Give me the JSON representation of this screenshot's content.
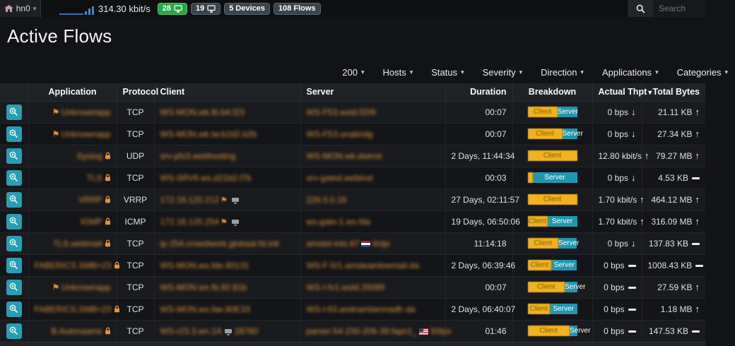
{
  "navbar": {
    "interface_label": "hn0",
    "throughput": "314.30 kbit/s",
    "badges": [
      {
        "label": "28",
        "style": "green",
        "icon": "monitor-icon"
      },
      {
        "label": "19",
        "style": "dark",
        "icon": "monitor-icon"
      },
      {
        "label": "5 Devices",
        "style": "dark",
        "icon": null
      },
      {
        "label": "108 Flows",
        "style": "dark",
        "icon": null
      }
    ],
    "search_placeholder": "Search"
  },
  "page": {
    "title": "Active Flows"
  },
  "filters": {
    "page_size": "200",
    "items": [
      "Hosts",
      "Status",
      "Severity",
      "Direction",
      "Applications",
      "Categories"
    ]
  },
  "table": {
    "headers": {
      "application": "Application",
      "protocol": "Protocol",
      "client": "Client",
      "server": "Server",
      "duration": "Duration",
      "breakdown": "Breakdown",
      "actual_thpt": "Actual Thpt",
      "total_bytes": "Total Bytes"
    },
    "breakdown_labels": {
      "client": "Client",
      "server": "Server"
    },
    "rows": [
      {
        "app": {
          "pre": [
            "thumbtack"
          ],
          "text": "Unknownapp",
          "post": []
        },
        "proto": "TCP",
        "client": [
          {
            "t": "WS-MON.wk.fb.b4.f23"
          }
        ],
        "server": [
          {
            "t": "WS-F53.wsld.f209"
          }
        ],
        "duration": "00:07",
        "client_pct": 60,
        "thpt": "0 bps",
        "thpt_trend": "down",
        "bytes": "21.11 KB",
        "bytes_trend": "up"
      },
      {
        "app": {
          "pre": [
            "thumbtack"
          ],
          "text": "Unknownapp",
          "post": []
        },
        "proto": "TCP",
        "client": [
          {
            "t": "WS-MON.wk.lw.b2d2.b2b"
          }
        ],
        "server": [
          {
            "t": "WS-F53.unabridg"
          }
        ],
        "duration": "00:07",
        "client_pct": 70,
        "thpt": "0 bps",
        "thpt_trend": "down",
        "bytes": "27.34 KB",
        "bytes_trend": "up"
      },
      {
        "app": {
          "pre": [],
          "text": "Syslog",
          "post": [
            "lock"
          ]
        },
        "proto": "UDP",
        "client": [
          {
            "t": "srv-pfx3.webhosting"
          }
        ],
        "server": [
          {
            "t": "WS-MON.wk.dwinst"
          }
        ],
        "duration": "2 Days, 11:44:34",
        "client_pct": 100,
        "thpt": "12.80 kbit/s",
        "thpt_trend": "up",
        "bytes": "79.27 MB",
        "bytes_trend": "up"
      },
      {
        "app": {
          "pre": [],
          "text": "TLS",
          "post": [
            "lock"
          ]
        },
        "proto": "TCP",
        "client": [
          {
            "t": "WS-SRV6.ws.d21b2.f7b"
          }
        ],
        "server": [
          {
            "t": "srv-gated.webinst"
          }
        ],
        "duration": "00:03",
        "client_pct": 10,
        "thpt": "0 bps",
        "thpt_trend": "down",
        "bytes": "4.53 KB",
        "bytes_trend": "flat"
      },
      {
        "app": {
          "pre": [],
          "text": "VRRP",
          "post": [
            "lock"
          ]
        },
        "proto": "VRRP",
        "client": [
          {
            "t": "172.18.120.212"
          },
          {
            "i": "flag-orange"
          },
          {
            "i": "device"
          }
        ],
        "server": [
          {
            "t": "226.0.0.18"
          }
        ],
        "duration": "27 Days, 02:11:57",
        "client_pct": 100,
        "thpt": "1.70 kbit/s",
        "thpt_trend": "up",
        "bytes": "464.12 MB",
        "bytes_trend": "up"
      },
      {
        "app": {
          "pre": [],
          "text": "IGMP",
          "post": [
            "lock"
          ]
        },
        "proto": "ICMP",
        "client": [
          {
            "t": "172.18.120.254"
          },
          {
            "i": "flag-orange"
          },
          {
            "i": "device"
          }
        ],
        "server": [
          {
            "t": "ws-gate-1.ws.fda"
          }
        ],
        "duration": "19 Days, 06:50:06",
        "client_pct": 40,
        "thpt": "1.70 kbit/s",
        "thpt_trend": "up",
        "bytes": "316.09 MB",
        "bytes_trend": "up"
      },
      {
        "app": {
          "pre": [],
          "text": "TLS.webmail",
          "post": [
            "lock"
          ]
        },
        "proto": "TCP",
        "client": [
          {
            "t": "ip-254.crowdwork.globaal.fd.intl"
          }
        ],
        "server": [
          {
            "t": "amstel-ints.67"
          },
          {
            "i": "flag-nl"
          },
          {
            "t": "lintje"
          }
        ],
        "duration": "11:14:18",
        "client_pct": 62,
        "thpt": "0 bps",
        "thpt_trend": "down",
        "bytes": "137.83 KB",
        "bytes_trend": "flat"
      },
      {
        "app": {
          "pre": [],
          "text": "FABERICS.SMB=23",
          "post": [
            "lock"
          ]
        },
        "proto": "TCP",
        "client": [
          {
            "t": "WS-MON.ws.fde.80131"
          }
        ],
        "server": [
          {
            "t": "WS-F-5/1.amsteamloemail-da"
          }
        ],
        "duration": "2 Days, 06:39:46",
        "client_pct": 48,
        "thpt": "0 bps",
        "thpt_trend": "flat",
        "bytes": "1008.43 KB",
        "bytes_trend": "flat"
      },
      {
        "app": {
          "pre": [
            "thumbtack"
          ],
          "text": "Unknownapp",
          "post": []
        },
        "proto": "TCP",
        "client": [
          {
            "t": "WS-MON.ws.fb.92.81b"
          }
        ],
        "server": [
          {
            "t": "WS-I-fv1.wsld.25089"
          }
        ],
        "duration": "00:07",
        "client_pct": 75,
        "thpt": "0 bps",
        "thpt_trend": "flat",
        "bytes": "27.59 KB",
        "bytes_trend": "up"
      },
      {
        "app": {
          "pre": [],
          "text": "FABERICS.SMB=23",
          "post": [
            "lock"
          ]
        },
        "proto": "TCP",
        "client": [
          {
            "t": "WS-MON.ws.fae.80E33"
          }
        ],
        "server": [
          {
            "t": "WS-I-fi3.andnamlamnadfr-da"
          }
        ],
        "duration": "2 Days, 06:40:07",
        "client_pct": 45,
        "thpt": "0 bps",
        "thpt_trend": "flat",
        "bytes": "1.18 MB",
        "bytes_trend": "up"
      },
      {
        "app": {
          "pre": [],
          "text": "B.Autonaams",
          "post": [
            "lock"
          ]
        },
        "proto": "TCP",
        "client": [
          {
            "t": "WS-r23.3.wn.1A"
          },
          {
            "i": "device"
          },
          {
            "t": "28760"
          }
        ],
        "server": [
          {
            "t": "parser-54-230-206-39.fapn1_"
          },
          {
            "i": "flag-us"
          },
          {
            "t": "50tps"
          }
        ],
        "duration": "01:46",
        "client_pct": 85,
        "thpt": "0 bps",
        "thpt_trend": "flat",
        "bytes": "147.53 KB",
        "bytes_trend": "flat"
      }
    ]
  }
}
